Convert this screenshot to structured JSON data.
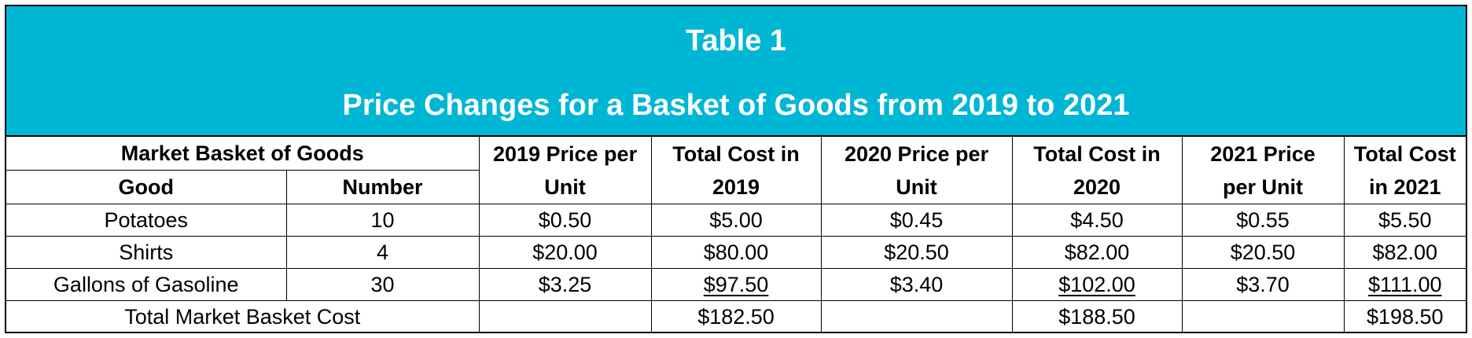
{
  "title": "Table 1",
  "subtitle": "Price Changes for a Basket of Goods from 2019 to 2021",
  "header": {
    "group": "Market Basket of Goods",
    "good": "Good",
    "number": "Number",
    "p2019_line1": "2019 Price per",
    "p2019_line2": "Unit",
    "c2019_line1": "Total Cost in",
    "c2019_line2": "2019",
    "p2020_line1": "2020 Price per",
    "p2020_line2": "Unit",
    "c2020_line1": "Total Cost in",
    "c2020_line2": "2020",
    "p2021_line1": "2021 Price",
    "p2021_line2": "per Unit",
    "c2021_line1": "Total Cost",
    "c2021_line2": "in 2021"
  },
  "rows": [
    {
      "good": "Potatoes",
      "number": "10",
      "p2019": "$0.50",
      "c2019": "$5.00",
      "p2020": "$0.45",
      "c2020": "$4.50",
      "p2021": "$0.55",
      "c2021": "$5.50"
    },
    {
      "good": "Shirts",
      "number": "4",
      "p2019": "$20.00",
      "c2019": "$80.00",
      "p2020": "$20.50",
      "c2020": "$82.00",
      "p2021": "$20.50",
      "c2021": "$82.00"
    },
    {
      "good": "Gallons of Gasoline",
      "number": "30",
      "p2019": "$3.25",
      "c2019": "$97.50",
      "p2020": "$3.40",
      "c2020": "$102.00",
      "p2021": "$3.70",
      "c2021": "$111.00"
    }
  ],
  "total": {
    "label": "Total Market Basket Cost",
    "c2019": "$182.50",
    "c2020": "$188.50",
    "c2021": "$198.50"
  }
}
